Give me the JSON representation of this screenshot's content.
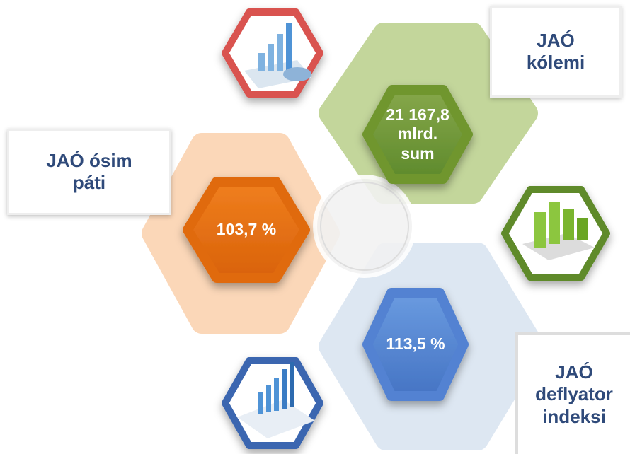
{
  "items": [
    {
      "label_lines": [
        "JAÓ",
        "kólemi"
      ],
      "value_lines": [
        "21 167,8",
        "mlrd.",
        "sum"
      ]
    },
    {
      "label_lines": [
        "JAÓ ósim",
        "páti"
      ],
      "value_lines": [
        "103,7 %"
      ]
    },
    {
      "label_lines": [
        "JAÓ",
        "deflyator",
        "indeksi"
      ],
      "value_lines": [
        "113,5 %"
      ]
    }
  ]
}
